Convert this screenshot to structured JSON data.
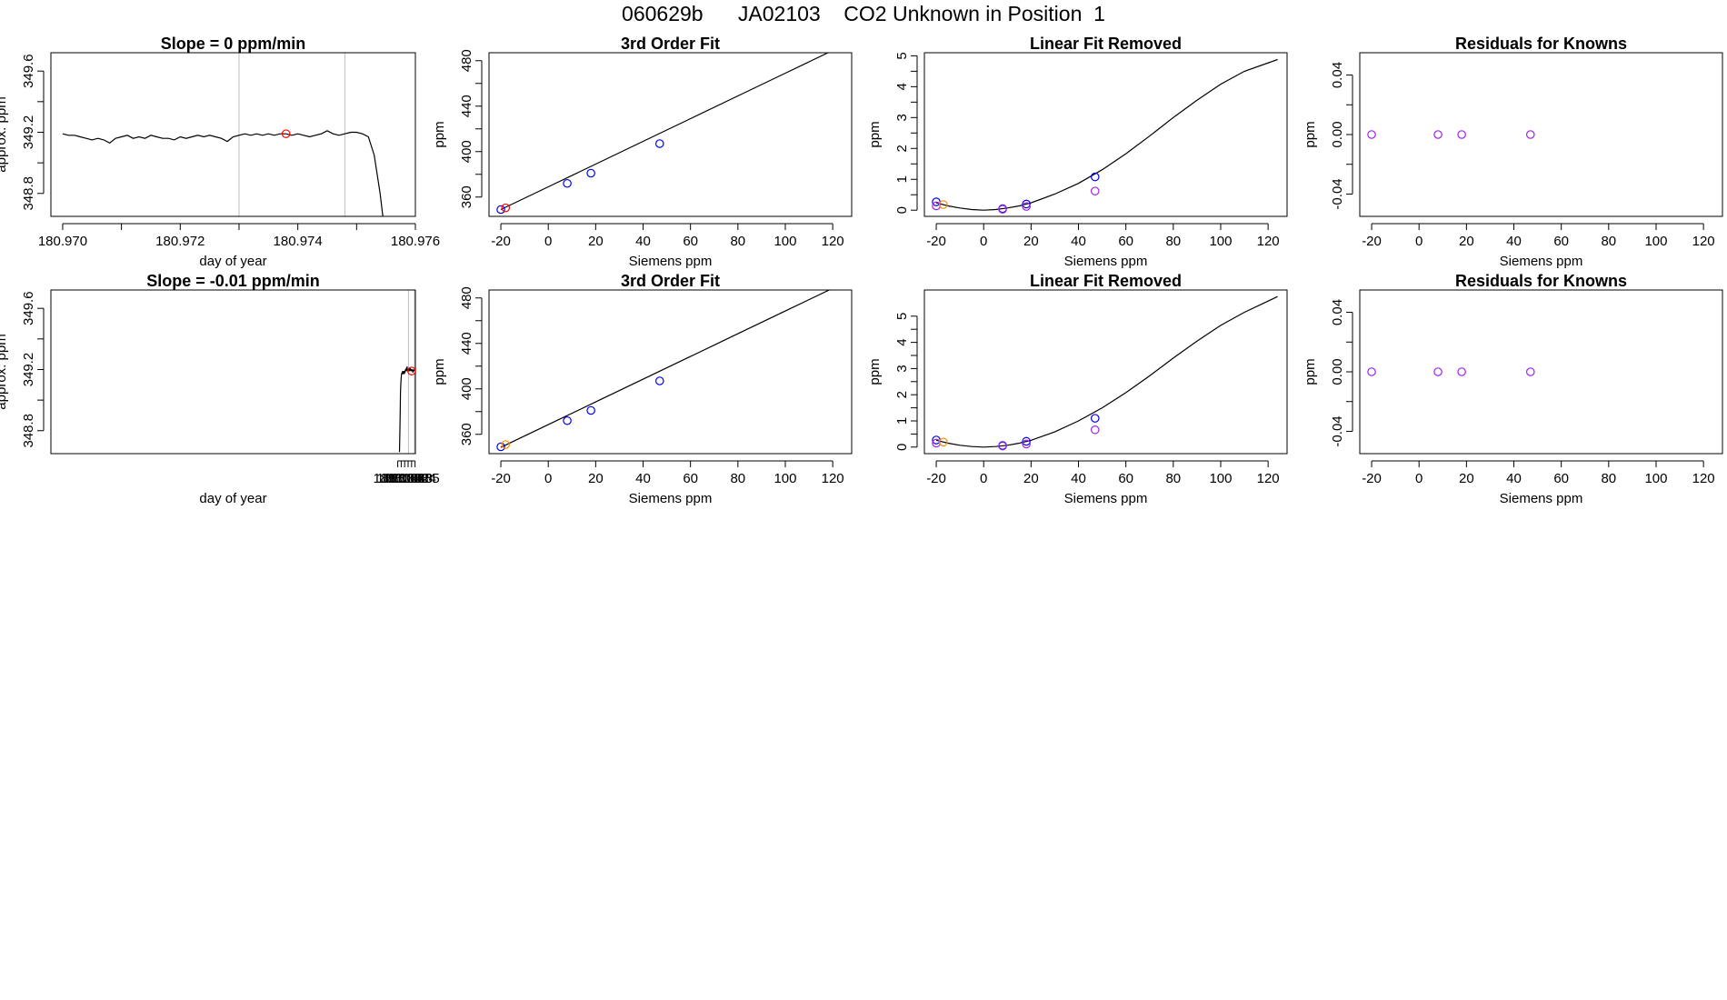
{
  "page_title": "060629b      JA02103    CO2 Unknown in Position  1",
  "colors": {
    "line": "#000000",
    "frame": "#000000",
    "vline": "#bebebe",
    "blue": "#0000ff",
    "red": "#ff0000",
    "orange": "#ff8c00",
    "purple": "#a020f0"
  },
  "chart_data": [
    {
      "type": "line",
      "title": "Slope =  0  ppm/min",
      "xlabel": "day of year",
      "ylabel": "approx. ppm",
      "xlim": [
        180.9698,
        180.976
      ],
      "ylim": [
        348.65,
        349.72
      ],
      "xticks": [
        "180.970",
        "180.972",
        "180.974",
        "180.976"
      ],
      "yticks": [
        "348.8",
        "349.2",
        "349.6"
      ],
      "vlines": [
        180.973,
        180.9748
      ],
      "series": [
        {
          "values": [
            [
              180.97,
              349.19
            ],
            [
              180.9701,
              349.18
            ],
            [
              180.9702,
              349.18
            ],
            [
              180.9703,
              349.17
            ],
            [
              180.9704,
              349.16
            ],
            [
              180.9705,
              349.15
            ],
            [
              180.9706,
              349.16
            ],
            [
              180.9707,
              349.15
            ],
            [
              180.9708,
              349.13
            ],
            [
              180.9709,
              349.16
            ],
            [
              180.971,
              349.17
            ],
            [
              180.9711,
              349.18
            ],
            [
              180.9712,
              349.16
            ],
            [
              180.9713,
              349.17
            ],
            [
              180.9714,
              349.16
            ],
            [
              180.9715,
              349.18
            ],
            [
              180.9716,
              349.17
            ],
            [
              180.9717,
              349.16
            ],
            [
              180.9718,
              349.16
            ],
            [
              180.9719,
              349.15
            ],
            [
              180.972,
              349.17
            ],
            [
              180.9721,
              349.16
            ],
            [
              180.9722,
              349.17
            ],
            [
              180.9723,
              349.18
            ],
            [
              180.9724,
              349.17
            ],
            [
              180.9725,
              349.18
            ],
            [
              180.9726,
              349.17
            ],
            [
              180.9727,
              349.16
            ],
            [
              180.9728,
              349.14
            ],
            [
              180.9729,
              349.17
            ],
            [
              180.973,
              349.18
            ],
            [
              180.9731,
              349.19
            ],
            [
              180.9732,
              349.18
            ],
            [
              180.9733,
              349.19
            ],
            [
              180.9734,
              349.18
            ],
            [
              180.9735,
              349.19
            ],
            [
              180.9736,
              349.18
            ],
            [
              180.9737,
              349.19
            ],
            [
              180.9738,
              349.19
            ],
            [
              180.9739,
              349.18
            ],
            [
              180.974,
              349.19
            ],
            [
              180.9741,
              349.18
            ],
            [
              180.9742,
              349.17
            ],
            [
              180.9743,
              349.18
            ],
            [
              180.9744,
              349.19
            ],
            [
              180.9745,
              349.21
            ],
            [
              180.9746,
              349.19
            ],
            [
              180.9747,
              349.18
            ],
            [
              180.9748,
              349.19
            ],
            [
              180.9749,
              349.2
            ],
            [
              180.975,
              349.2
            ],
            [
              180.9751,
              349.19
            ],
            [
              180.9752,
              349.17
            ],
            [
              180.9753,
              349.05
            ],
            [
              180.9754,
              348.8
            ],
            [
              180.97545,
              348.64
            ]
          ]
        }
      ],
      "markers": [
        {
          "x": 180.9738,
          "y": 349.19,
          "color": "red"
        }
      ]
    },
    {
      "type": "line",
      "title": "3rd Order Fit",
      "xlabel": "Siemens ppm",
      "ylabel": "ppm",
      "xlim": [
        -25,
        128
      ],
      "ylim": [
        343,
        487
      ],
      "xticks": [
        "-20",
        "0",
        "20",
        "40",
        "60",
        "80",
        "100",
        "120"
      ],
      "yticks": [
        "360",
        "400",
        "440",
        "480"
      ],
      "curve": [
        [
          -20,
          349
        ],
        [
          0,
          369
        ],
        [
          20,
          389
        ],
        [
          40,
          409
        ],
        [
          60,
          429
        ],
        [
          80,
          449
        ],
        [
          100,
          469
        ],
        [
          124,
          493
        ]
      ],
      "points": [
        {
          "x": -20,
          "y": 349.0,
          "color": "blue"
        },
        {
          "x": -18,
          "y": 350.5,
          "color": "red"
        },
        {
          "x": 8,
          "y": 372,
          "color": "blue"
        },
        {
          "x": 18,
          "y": 381,
          "color": "blue"
        },
        {
          "x": 47,
          "y": 407,
          "color": "blue"
        }
      ]
    },
    {
      "type": "line",
      "title": "Linear Fit Removed",
      "xlabel": "Siemens ppm",
      "ylabel": "ppm",
      "xlim": [
        -25,
        128
      ],
      "ylim": [
        -0.2,
        5.1
      ],
      "xticks": [
        "-20",
        "0",
        "20",
        "40",
        "60",
        "80",
        "100",
        "120"
      ],
      "yticks": [
        "0",
        "1",
        "2",
        "3",
        "4",
        "5"
      ],
      "curve": [
        [
          -20,
          0.24
        ],
        [
          -15,
          0.14
        ],
        [
          -10,
          0.07
        ],
        [
          -5,
          0.02
        ],
        [
          0,
          0.0
        ],
        [
          5,
          0.02
        ],
        [
          10,
          0.07
        ],
        [
          15,
          0.14
        ],
        [
          20,
          0.24
        ],
        [
          30,
          0.52
        ],
        [
          40,
          0.87
        ],
        [
          50,
          1.31
        ],
        [
          60,
          1.83
        ],
        [
          70,
          2.4
        ],
        [
          80,
          3.0
        ],
        [
          90,
          3.56
        ],
        [
          100,
          4.08
        ],
        [
          110,
          4.5
        ],
        [
          124,
          4.88
        ]
      ],
      "points": [
        {
          "x": -20,
          "y": 0.27,
          "color": "blue"
        },
        {
          "x": -20,
          "y": 0.14,
          "color": "purple"
        },
        {
          "x": -17,
          "y": 0.18,
          "color": "orange"
        },
        {
          "x": 8,
          "y": 0.05,
          "color": "blue"
        },
        {
          "x": 8,
          "y": 0.03,
          "color": "purple"
        },
        {
          "x": 18,
          "y": 0.2,
          "color": "blue"
        },
        {
          "x": 18,
          "y": 0.12,
          "color": "purple"
        },
        {
          "x": 47,
          "y": 1.08,
          "color": "blue"
        },
        {
          "x": 47,
          "y": 0.62,
          "color": "purple"
        }
      ]
    },
    {
      "type": "scatter",
      "title": "Residuals for Knowns",
      "xlabel": "Siemens ppm",
      "ylabel": "ppm",
      "xlim": [
        -25,
        128
      ],
      "ylim": [
        -0.055,
        0.055
      ],
      "xticks": [
        "-20",
        "0",
        "20",
        "40",
        "60",
        "80",
        "100",
        "120"
      ],
      "yticks": [
        "-0.04",
        "0.00",
        "0.04"
      ],
      "points": [
        {
          "x": -20,
          "y": 0.0,
          "color": "purple"
        },
        {
          "x": 8,
          "y": 0.0,
          "color": "purple"
        },
        {
          "x": 18,
          "y": 0.0,
          "color": "purple"
        },
        {
          "x": 47,
          "y": 0.0,
          "color": "purple"
        }
      ]
    },
    {
      "type": "line",
      "title": "Slope =  -0.01  ppm/min",
      "xlabel": "day of year",
      "ylabel": "approx. ppm",
      "xlim": [
        180.9797,
        181.0851
      ],
      "ylim": [
        348.65,
        349.72
      ],
      "xticks": [
        "181.080",
        "181.081",
        "181.082",
        "181.083",
        "181.084",
        "181.085"
      ],
      "yticks": [
        "348.8",
        "349.2",
        "349.6"
      ],
      "vlines": [
        181.0831,
        181.08485
      ],
      "series": [
        {
          "values": [
            [
              181.0805,
              348.66
            ],
            [
              181.0806,
              348.78
            ],
            [
              181.0807,
              348.92
            ],
            [
              181.0808,
              349.05
            ],
            [
              181.0809,
              349.11
            ],
            [
              181.081,
              349.15
            ],
            [
              181.0811,
              349.17
            ],
            [
              181.0812,
              349.18
            ],
            [
              181.0813,
              349.17
            ],
            [
              181.0814,
              349.19
            ],
            [
              181.0815,
              349.17
            ],
            [
              181.0816,
              349.18
            ],
            [
              181.0817,
              349.19
            ],
            [
              181.0818,
              349.18
            ],
            [
              181.0819,
              349.17
            ],
            [
              181.082,
              349.19
            ],
            [
              181.0821,
              349.18
            ],
            [
              181.0822,
              349.2
            ],
            [
              181.0823,
              349.19
            ],
            [
              181.0824,
              349.2
            ],
            [
              181.0825,
              349.21
            ],
            [
              181.0826,
              349.19
            ],
            [
              181.0827,
              349.22
            ],
            [
              181.0828,
              349.19
            ],
            [
              181.0829,
              349.2
            ],
            [
              181.083,
              349.19
            ],
            [
              181.0831,
              349.2
            ],
            [
              181.0832,
              349.19
            ],
            [
              181.0833,
              349.21
            ],
            [
              181.0834,
              349.19
            ],
            [
              181.0835,
              349.2
            ],
            [
              181.0836,
              349.21
            ],
            [
              181.0837,
              349.2
            ],
            [
              181.0838,
              349.19
            ],
            [
              181.0839,
              349.2
            ],
            [
              181.084,
              349.2
            ],
            [
              181.0841,
              349.19
            ],
            [
              181.0842,
              349.2
            ],
            [
              181.0843,
              349.19
            ],
            [
              181.0844,
              349.18
            ],
            [
              181.0845,
              349.2
            ],
            [
              181.0846,
              349.19
            ],
            [
              181.0847,
              349.2
            ],
            [
              181.0848,
              349.19
            ]
          ]
        }
      ],
      "markers": [
        {
          "x": 181.084,
          "y": 349.19,
          "color": "red"
        }
      ]
    },
    {
      "type": "line",
      "title": "3rd Order Fit",
      "xlabel": "Siemens ppm",
      "ylabel": "ppm",
      "xlim": [
        -25,
        128
      ],
      "ylim": [
        343,
        487
      ],
      "xticks": [
        "-20",
        "0",
        "20",
        "40",
        "60",
        "80",
        "100",
        "120"
      ],
      "yticks": [
        "360",
        "400",
        "440",
        "480"
      ],
      "curve": [
        [
          -20,
          348.5
        ],
        [
          0,
          368.5
        ],
        [
          20,
          388.5
        ],
        [
          40,
          408.5
        ],
        [
          60,
          428.5
        ],
        [
          80,
          448.5
        ],
        [
          100,
          468.5
        ],
        [
          124,
          492.5
        ]
      ],
      "points": [
        {
          "x": -20,
          "y": 349.0,
          "color": "blue"
        },
        {
          "x": -18,
          "y": 351.0,
          "color": "orange"
        },
        {
          "x": 8,
          "y": 372,
          "color": "blue"
        },
        {
          "x": 18,
          "y": 381,
          "color": "blue"
        },
        {
          "x": 47,
          "y": 407,
          "color": "blue"
        }
      ]
    },
    {
      "type": "line",
      "title": "Linear Fit Removed",
      "xlabel": "Siemens ppm",
      "ylabel": "ppm",
      "xlim": [
        -25,
        128
      ],
      "ylim": [
        -0.25,
        6.0
      ],
      "xticks": [
        "-20",
        "0",
        "20",
        "40",
        "60",
        "80",
        "100",
        "120"
      ],
      "yticks": [
        "0",
        "1",
        "2",
        "3",
        "4",
        "5"
      ],
      "curve": [
        [
          -20,
          0.26
        ],
        [
          -15,
          0.15
        ],
        [
          -10,
          0.07
        ],
        [
          -5,
          0.02
        ],
        [
          0,
          0.0
        ],
        [
          5,
          0.02
        ],
        [
          10,
          0.07
        ],
        [
          15,
          0.15
        ],
        [
          20,
          0.26
        ],
        [
          30,
          0.58
        ],
        [
          40,
          1.0
        ],
        [
          50,
          1.5
        ],
        [
          60,
          2.08
        ],
        [
          70,
          2.72
        ],
        [
          80,
          3.4
        ],
        [
          90,
          4.05
        ],
        [
          100,
          4.65
        ],
        [
          110,
          5.15
        ],
        [
          124,
          5.75
        ]
      ],
      "points": [
        {
          "x": -20,
          "y": 0.27,
          "color": "blue"
        },
        {
          "x": -20,
          "y": 0.15,
          "color": "purple"
        },
        {
          "x": -17,
          "y": 0.19,
          "color": "orange"
        },
        {
          "x": 8,
          "y": 0.06,
          "color": "blue"
        },
        {
          "x": 8,
          "y": 0.04,
          "color": "purple"
        },
        {
          "x": 18,
          "y": 0.22,
          "color": "blue"
        },
        {
          "x": 18,
          "y": 0.12,
          "color": "purple"
        },
        {
          "x": 47,
          "y": 1.1,
          "color": "blue"
        },
        {
          "x": 47,
          "y": 0.66,
          "color": "purple"
        }
      ]
    },
    {
      "type": "scatter",
      "title": "Residuals for Knowns",
      "xlabel": "Siemens ppm",
      "ylabel": "ppm",
      "xlim": [
        -25,
        128
      ],
      "ylim": [
        -0.055,
        0.055
      ],
      "xticks": [
        "-20",
        "0",
        "20",
        "40",
        "60",
        "80",
        "100",
        "120"
      ],
      "yticks": [
        "-0.04",
        "0.00",
        "0.04"
      ],
      "points": [
        {
          "x": -20,
          "y": 0.0,
          "color": "purple"
        },
        {
          "x": 8,
          "y": 0.0,
          "color": "purple"
        },
        {
          "x": 18,
          "y": 0.0,
          "color": "purple"
        },
        {
          "x": 47,
          "y": 0.0,
          "color": "purple"
        }
      ]
    }
  ]
}
